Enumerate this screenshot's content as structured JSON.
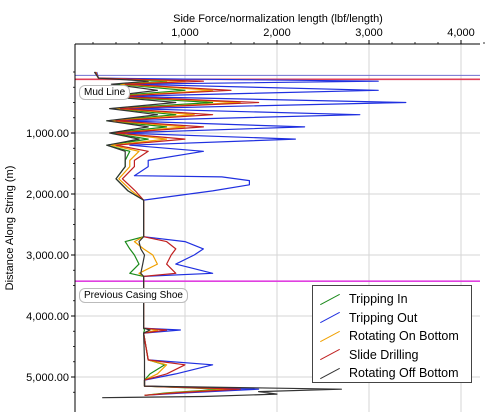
{
  "chart_data": {
    "type": "line",
    "x_axis_title": "Side Force/normalization length (lbf/length)",
    "y_axis_title": "Distance Along String (m)",
    "x_ticks": [
      "1,000",
      "2,000",
      "3,000",
      "4,000"
    ],
    "x_tick_values": [
      1000,
      2000,
      3000,
      4000
    ],
    "y_ticks": [
      "1,000.00",
      "2,000.00",
      "3,000.00",
      "4,000.00",
      "5,000.00"
    ],
    "y_tick_values": [
      1000,
      2000,
      3000,
      4000,
      5000
    ],
    "xlim": [
      0,
      4300
    ],
    "ylim": [
      0,
      5450
    ],
    "y_inverted": true,
    "x_axis_position": "top",
    "grid": true,
    "legend_position": "bottom-right",
    "markers": [
      {
        "label": "Mud Line",
        "depth": 120,
        "color": "#e0405a"
      },
      {
        "label": "Previous Casing Shoe",
        "depth": 3430,
        "color": "#e040e0"
      }
    ],
    "series": [
      {
        "name": "Tripping In",
        "color": "#1a8a1a",
        "points": [
          [
            20,
            0
          ],
          [
            60,
            100
          ],
          [
            800,
            150
          ],
          [
            250,
            200
          ],
          [
            1000,
            300
          ],
          [
            150,
            400
          ],
          [
            1300,
            500
          ],
          [
            200,
            600
          ],
          [
            900,
            700
          ],
          [
            150,
            800
          ],
          [
            800,
            900
          ],
          [
            200,
            1000
          ],
          [
            600,
            1100
          ],
          [
            150,
            1200
          ],
          [
            400,
            1300
          ],
          [
            350,
            1450
          ],
          [
            350,
            1550
          ],
          [
            250,
            1750
          ],
          [
            380,
            1950
          ],
          [
            550,
            2100
          ],
          [
            550,
            2700
          ],
          [
            350,
            2780
          ],
          [
            400,
            2900
          ],
          [
            450,
            3000
          ],
          [
            500,
            3150
          ],
          [
            400,
            3300
          ],
          [
            550,
            3350
          ],
          [
            550,
            4200
          ],
          [
            560,
            4230
          ],
          [
            550,
            4280
          ],
          [
            600,
            4720
          ],
          [
            780,
            4800
          ],
          [
            620,
            4950
          ],
          [
            560,
            5050
          ],
          [
            560,
            5150
          ],
          [
            1400,
            5200
          ],
          [
            800,
            5260
          ],
          [
            560,
            5300
          ]
        ]
      },
      {
        "name": "Tripping Out",
        "color": "#2030e0",
        "points": [
          [
            40,
            0
          ],
          [
            60,
            100
          ],
          [
            3100,
            150
          ],
          [
            400,
            200
          ],
          [
            3100,
            300
          ],
          [
            300,
            400
          ],
          [
            3400,
            500
          ],
          [
            400,
            600
          ],
          [
            2900,
            700
          ],
          [
            300,
            800
          ],
          [
            2300,
            900
          ],
          [
            300,
            1000
          ],
          [
            2200,
            1100
          ],
          [
            400,
            1200
          ],
          [
            1200,
            1300
          ],
          [
            600,
            1450
          ],
          [
            600,
            1550
          ],
          [
            450,
            1700
          ],
          [
            1400,
            1720
          ],
          [
            1700,
            1780
          ],
          [
            1700,
            1850
          ],
          [
            1300,
            1950
          ],
          [
            550,
            2100
          ],
          [
            550,
            2700
          ],
          [
            1000,
            2780
          ],
          [
            1200,
            2900
          ],
          [
            1100,
            3000
          ],
          [
            900,
            3150
          ],
          [
            1300,
            3300
          ],
          [
            550,
            3350
          ],
          [
            550,
            4200
          ],
          [
            950,
            4230
          ],
          [
            550,
            4280
          ],
          [
            600,
            4720
          ],
          [
            1300,
            4800
          ],
          [
            900,
            4950
          ],
          [
            560,
            5050
          ],
          [
            560,
            5150
          ],
          [
            1800,
            5200
          ],
          [
            1000,
            5260
          ],
          [
            560,
            5300
          ]
        ]
      },
      {
        "name": "Rotating On Bottom",
        "color": "#f0a000",
        "points": [
          [
            30,
            0
          ],
          [
            60,
            100
          ],
          [
            1000,
            150
          ],
          [
            300,
            200
          ],
          [
            1300,
            300
          ],
          [
            200,
            400
          ],
          [
            1600,
            500
          ],
          [
            250,
            600
          ],
          [
            1100,
            700
          ],
          [
            200,
            800
          ],
          [
            1000,
            900
          ],
          [
            250,
            1000
          ],
          [
            800,
            1100
          ],
          [
            200,
            1200
          ],
          [
            500,
            1300
          ],
          [
            400,
            1450
          ],
          [
            400,
            1550
          ],
          [
            280,
            1750
          ],
          [
            420,
            1950
          ],
          [
            550,
            2100
          ],
          [
            550,
            2700
          ],
          [
            450,
            2780
          ],
          [
            550,
            2900
          ],
          [
            650,
            3000
          ],
          [
            700,
            3150
          ],
          [
            500,
            3300
          ],
          [
            550,
            3350
          ],
          [
            550,
            4200
          ],
          [
            700,
            4230
          ],
          [
            550,
            4280
          ],
          [
            600,
            4720
          ],
          [
            800,
            4800
          ],
          [
            700,
            4950
          ],
          [
            560,
            5050
          ],
          [
            560,
            5150
          ],
          [
            1500,
            5200
          ],
          [
            850,
            5260
          ],
          [
            560,
            5300
          ]
        ]
      },
      {
        "name": "Slide Drilling",
        "color": "#c02020",
        "points": [
          [
            25,
            0
          ],
          [
            60,
            100
          ],
          [
            1200,
            150
          ],
          [
            350,
            200
          ],
          [
            1500,
            300
          ],
          [
            250,
            400
          ],
          [
            1800,
            500
          ],
          [
            300,
            600
          ],
          [
            1300,
            700
          ],
          [
            250,
            800
          ],
          [
            1200,
            900
          ],
          [
            250,
            1000
          ],
          [
            1000,
            1100
          ],
          [
            250,
            1200
          ],
          [
            600,
            1300
          ],
          [
            450,
            1450
          ],
          [
            450,
            1550
          ],
          [
            320,
            1750
          ],
          [
            460,
            1950
          ],
          [
            550,
            2100
          ],
          [
            550,
            2700
          ],
          [
            800,
            2780
          ],
          [
            900,
            2900
          ],
          [
            850,
            3000
          ],
          [
            800,
            3150
          ],
          [
            900,
            3300
          ],
          [
            550,
            3350
          ],
          [
            550,
            4200
          ],
          [
            800,
            4230
          ],
          [
            550,
            4280
          ],
          [
            600,
            4720
          ],
          [
            1000,
            4800
          ],
          [
            800,
            4950
          ],
          [
            560,
            5050
          ],
          [
            560,
            5150
          ],
          [
            1600,
            5200
          ],
          [
            900,
            5260
          ],
          [
            560,
            5300
          ]
        ]
      },
      {
        "name": "Rotating Off Bottom",
        "color": "#333333",
        "points": [
          [
            15,
            0
          ],
          [
            60,
            100
          ],
          [
            600,
            150
          ],
          [
            200,
            200
          ],
          [
            700,
            300
          ],
          [
            150,
            400
          ],
          [
            900,
            500
          ],
          [
            180,
            600
          ],
          [
            700,
            700
          ],
          [
            150,
            800
          ],
          [
            600,
            900
          ],
          [
            180,
            1000
          ],
          [
            500,
            1100
          ],
          [
            150,
            1200
          ],
          [
            350,
            1300
          ],
          [
            350,
            1450
          ],
          [
            350,
            1550
          ],
          [
            250,
            1750
          ],
          [
            380,
            1950
          ],
          [
            550,
            2100
          ],
          [
            550,
            2700
          ],
          [
            500,
            2780
          ],
          [
            520,
            2900
          ],
          [
            560,
            3000
          ],
          [
            540,
            3150
          ],
          [
            520,
            3300
          ],
          [
            550,
            3350
          ],
          [
            550,
            4200
          ],
          [
            620,
            4230
          ],
          [
            550,
            4280
          ],
          [
            560,
            4720
          ],
          [
            560,
            4950
          ],
          [
            560,
            5050
          ],
          [
            560,
            5150
          ],
          [
            2700,
            5200
          ],
          [
            1800,
            5240
          ],
          [
            2000,
            5280
          ],
          [
            1200,
            5320
          ],
          [
            100,
            5340
          ]
        ]
      }
    ]
  }
}
